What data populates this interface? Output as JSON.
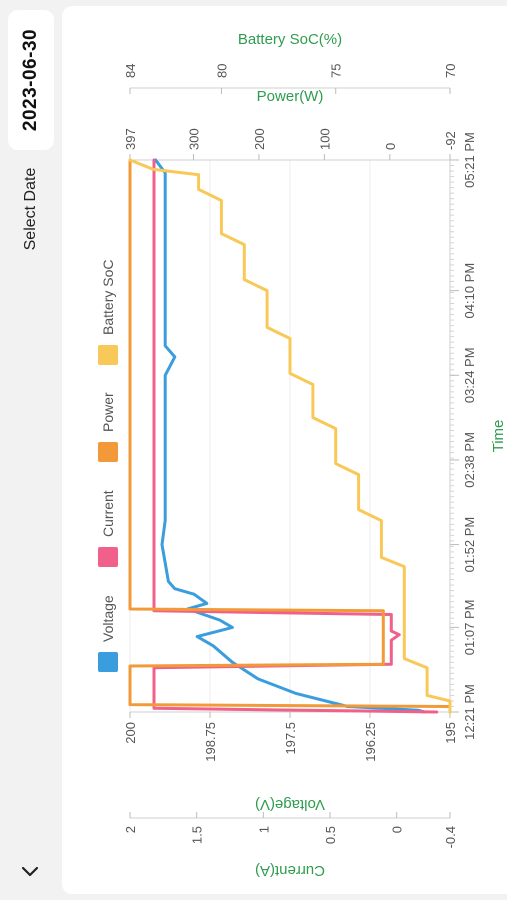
{
  "date_picker": {
    "label": "Select Date",
    "value": "2023-06-30"
  },
  "nav": {
    "back_icon": "chevron-down-icon"
  },
  "chart_data": {
    "type": "line",
    "orientation": "rotated-90",
    "time_axis": {
      "title": "Time",
      "ticks": [
        "12:21 PM",
        "01:07 PM",
        "01:52 PM",
        "02:38 PM",
        "03:24 PM",
        "04:10 PM",
        "05:21 PM"
      ],
      "range": [
        "12:21 PM",
        "05:21 PM"
      ]
    },
    "axes": {
      "voltage": {
        "title": "Voltage(V)",
        "min": 195,
        "max": 200,
        "ticks": [
          "195",
          "196.25",
          "197.5",
          "198.75",
          "200"
        ]
      },
      "current": {
        "title": "Current(A)",
        "min": -0.4,
        "max": 2,
        "ticks": [
          "-0.4",
          "0",
          "0.5",
          "1",
          "1.5",
          "2"
        ]
      },
      "power": {
        "title": "Power(W)",
        "min": -92,
        "max": 397,
        "ticks": [
          "-92",
          "0",
          "100",
          "200",
          "300",
          "397"
        ]
      },
      "soc": {
        "title": "Battery SoC(%)",
        "min": 70,
        "max": 84,
        "ticks": [
          "70",
          "75",
          "80",
          "84"
        ]
      }
    },
    "legend": [
      "Voltage",
      "Current",
      "Power",
      "Battery SoC"
    ],
    "colors": {
      "Voltage": "#3a9ddd",
      "Current": "#f0608a",
      "Power": "#f29a3a",
      "Battery SoC": "#f8c858"
    },
    "series": [
      {
        "name": "Voltage",
        "axis": "voltage",
        "x": [
          "12:21 PM",
          "12:22 PM",
          "12:24 PM",
          "12:31 PM",
          "12:39 PM",
          "12:48 PM",
          "12:57 PM",
          "01:02 PM",
          "01:07 PM",
          "01:11 PM",
          "01:17 PM",
          "01:20 PM",
          "01:25 PM",
          "01:28 PM",
          "01:32 PM",
          "01:42 PM",
          "01:52 PM",
          "02:05 PM",
          "02:38 PM",
          "03:24 PM",
          "03:34 PM",
          "03:40 PM",
          "04:10 PM",
          "05:05 PM",
          "05:14 PM",
          "05:21 PM"
        ],
        "y": [
          195.4,
          195.5,
          196.6,
          197.4,
          198.0,
          198.4,
          198.7,
          198.95,
          198.4,
          198.6,
          199.1,
          198.8,
          199.0,
          199.3,
          199.4,
          199.45,
          199.5,
          199.45,
          199.45,
          199.45,
          199.3,
          199.45,
          199.45,
          199.45,
          199.45,
          199.6
        ]
      },
      {
        "name": "Current",
        "axis": "current",
        "x": [
          "12:21 PM",
          "12:23 PM",
          "12:45 PM",
          "12:47 PM",
          "01:00 PM",
          "01:03 PM",
          "01:05 PM",
          "01:14 PM",
          "01:16 PM",
          "05:21 PM"
        ],
        "y": [
          -0.3,
          1.82,
          1.82,
          0.04,
          0.04,
          -0.02,
          0.04,
          0.04,
          1.82,
          1.82
        ]
      },
      {
        "name": "Power",
        "axis": "power",
        "x": [
          "12:21 PM",
          "12:24 PM",
          "12:25 PM",
          "12:46 PM",
          "12:47 PM",
          "01:03 PM",
          "01:05 PM",
          "01:16 PM",
          "01:17 PM",
          "05:21 PM"
        ],
        "y": [
          -92,
          -92,
          397,
          397,
          10,
          10,
          10,
          10,
          397,
          397
        ]
      },
      {
        "name": "Battery SoC",
        "axis": "soc",
        "x": [
          "12:21 PM",
          "12:27 PM",
          "12:30 PM",
          "12:45 PM",
          "12:50 PM",
          "01:40 PM",
          "01:45 PM",
          "02:05 PM",
          "02:11 PM",
          "02:30 PM",
          "02:36 PM",
          "02:55 PM",
          "03:01 PM",
          "03:19 PM",
          "03:25 PM",
          "03:44 PM",
          "03:50 PM",
          "04:10 PM",
          "04:16 PM",
          "04:35 PM",
          "04:41 PM",
          "04:59 PM",
          "05:05 PM",
          "05:13 PM",
          "05:16 PM",
          "05:21 PM"
        ],
        "y": [
          70,
          70,
          71,
          71,
          72,
          72,
          73,
          73,
          74,
          74,
          75,
          75,
          76,
          76,
          77,
          77,
          78,
          78,
          79,
          79,
          80,
          80,
          81,
          81,
          83,
          84
        ]
      }
    ]
  }
}
